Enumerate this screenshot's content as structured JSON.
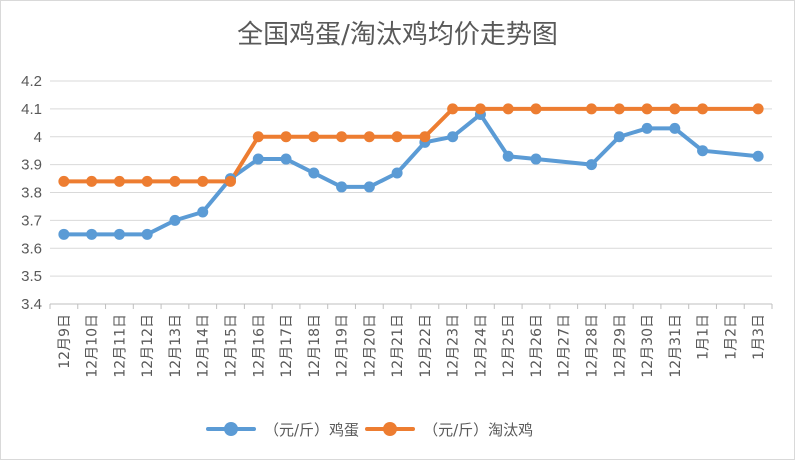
{
  "chart_data": {
    "type": "line",
    "title": "全国鸡蛋/淘汰鸡均价走势图",
    "categories": [
      "12月9日",
      "12月10日",
      "12月11日",
      "12月12日",
      "12月13日",
      "12月14日",
      "12月15日",
      "12月16日",
      "12月17日",
      "12月18日",
      "12月19日",
      "12月20日",
      "12月21日",
      "12月22日",
      "12月23日",
      "12月24日",
      "12月25日",
      "12月26日",
      "12月27日",
      "12月28日",
      "12月29日",
      "12月30日",
      "12月31日",
      "1月1日",
      "1月2日",
      "1月3日"
    ],
    "series": [
      {
        "name": "（元/斤）鸡蛋",
        "color": "#5b9bd5",
        "values": [
          3.65,
          3.65,
          3.65,
          3.65,
          3.7,
          3.73,
          3.85,
          3.92,
          3.92,
          3.87,
          3.82,
          3.82,
          3.87,
          3.98,
          4.0,
          4.08,
          3.93,
          3.92,
          null,
          3.9,
          4.0,
          4.03,
          4.03,
          3.95,
          null,
          3.93
        ]
      },
      {
        "name": "（元/斤）淘汰鸡",
        "color": "#ed7d31",
        "values": [
          3.84,
          3.84,
          3.84,
          3.84,
          3.84,
          3.84,
          3.84,
          4.0,
          4.0,
          4.0,
          4.0,
          4.0,
          4.0,
          4.0,
          4.1,
          4.1,
          4.1,
          4.1,
          null,
          4.1,
          4.1,
          4.1,
          4.1,
          4.1,
          null,
          4.1
        ]
      }
    ],
    "ylim": [
      3.4,
      4.2
    ],
    "yticks": [
      "3.4",
      "3.5",
      "3.6",
      "3.7",
      "3.8",
      "3.9",
      "4",
      "4.1",
      "4.2"
    ],
    "grid": true,
    "legend": "bottom"
  }
}
